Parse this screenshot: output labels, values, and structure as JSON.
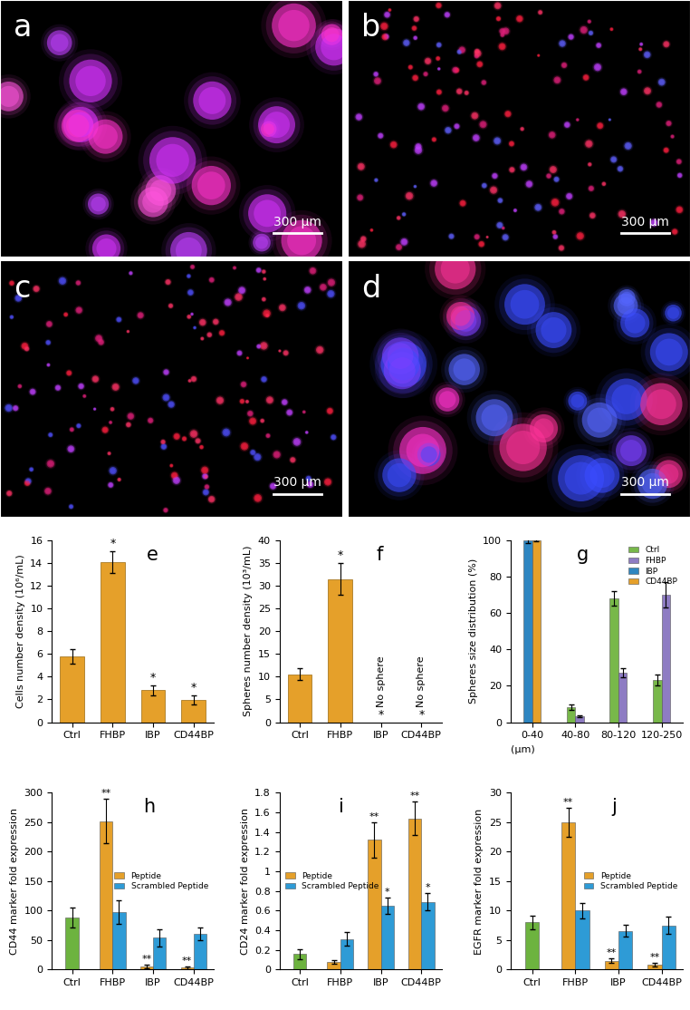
{
  "chart_data": [
    {
      "type": "image",
      "annotations": [
        "a",
        "300 μm"
      ]
    },
    {
      "type": "image",
      "annotations": [
        "b",
        "300 μm"
      ]
    },
    {
      "type": "image",
      "annotations": [
        "c",
        "300 μm"
      ]
    },
    {
      "type": "image",
      "annotations": [
        "d",
        "300 μm"
      ]
    },
    {
      "type": "bar",
      "annotations": [
        "e"
      ],
      "ylabel": "Cells number density (10⁶/mL)",
      "categories": [
        "Ctrl",
        "FHBP",
        "IBP",
        "CD44BP"
      ],
      "values": [
        5.8,
        14.1,
        2.8,
        1.95
      ],
      "errors": [
        0.65,
        0.95,
        0.45,
        0.4
      ],
      "significance": [
        null,
        "*",
        "*",
        "*"
      ],
      "color": "#E5A02A",
      "ylim": [
        0,
        16
      ],
      "yticks": [
        0,
        2,
        4,
        6,
        8,
        10,
        12,
        14,
        16
      ]
    },
    {
      "type": "bar",
      "annotations": [
        "f"
      ],
      "ylabel": "Spheres number density (10³/mL)",
      "categories": [
        "Ctrl",
        "FHBP",
        "IBP",
        "CD44BP"
      ],
      "values": [
        10.5,
        31.5,
        0,
        0
      ],
      "errors": [
        1.3,
        3.5,
        0,
        0
      ],
      "significance": [
        null,
        "*",
        "*",
        "*"
      ],
      "notes": [
        null,
        null,
        "No sphere",
        "No sphere"
      ],
      "color": "#E5A02A",
      "ylim": [
        0,
        40
      ],
      "yticks": [
        0,
        5,
        10,
        15,
        20,
        25,
        30,
        35,
        40
      ]
    },
    {
      "type": "grouped_bar",
      "annotations": [
        "g"
      ],
      "ylabel": "Spheres size distribution (%)",
      "xlabel": "(μm)",
      "categories": [
        "0-40",
        "40-80",
        "80-120",
        "120-250"
      ],
      "series": [
        {
          "name": "Ctrl",
          "color": "#78B84A",
          "values": [
            null,
            8,
            68,
            23
          ],
          "errors": [
            null,
            1.5,
            4,
            3
          ]
        },
        {
          "name": "FHBP",
          "color": "#8E7CC3",
          "values": [
            null,
            3,
            27,
            70
          ],
          "errors": [
            null,
            0.5,
            2.5,
            7
          ]
        },
        {
          "name": "IBP",
          "color": "#2E86C1",
          "values": [
            100,
            null,
            null,
            null
          ],
          "errors": [
            1.5,
            null,
            null,
            null
          ]
        },
        {
          "name": "CD44BP",
          "color": "#E5A02A",
          "values": [
            100,
            null,
            null,
            null
          ],
          "errors": [
            0.5,
            null,
            null,
            null
          ]
        }
      ],
      "legend": "upper right",
      "ylim": [
        0,
        100
      ],
      "yticks": [
        0,
        20,
        40,
        60,
        80,
        100
      ]
    },
    {
      "type": "grouped_bar",
      "annotations": [
        "h"
      ],
      "ylabel": "CD44 marker fold expression",
      "categories": [
        "Ctrl",
        "FHBP",
        "IBP",
        "CD44BP"
      ],
      "series": [
        {
          "color": "#6DB33F",
          "values": [
            88,
            null,
            null,
            null
          ],
          "errors": [
            17,
            null,
            null,
            null
          ]
        },
        {
          "name": "Peptide",
          "color": "#E5A02A",
          "values": [
            null,
            252,
            5,
            3
          ],
          "errors": [
            null,
            38,
            3,
            2
          ],
          "significance": [
            null,
            "**",
            "**",
            "**"
          ]
        },
        {
          "name": "Scrambled Peptide",
          "color": "#2E9BD6",
          "values": [
            null,
            98,
            54,
            61
          ],
          "errors": [
            null,
            20,
            15,
            11
          ]
        }
      ],
      "legend": "center right",
      "ylim": [
        0,
        300
      ],
      "yticks": [
        0,
        50,
        100,
        150,
        200,
        250,
        300
      ]
    },
    {
      "type": "grouped_bar",
      "annotations": [
        "i"
      ],
      "ylabel": "CD24 marker fold expression",
      "categories": [
        "Ctrl",
        "FHBP",
        "IBP",
        "CD44BP"
      ],
      "series": [
        {
          "color": "#6DB33F",
          "values": [
            0.16,
            null,
            null,
            null
          ],
          "errors": [
            0.05,
            null,
            null,
            null
          ]
        },
        {
          "name": "Peptide",
          "color": "#E5A02A",
          "values": [
            null,
            0.08,
            1.32,
            1.54
          ],
          "errors": [
            null,
            0.02,
            0.18,
            0.17
          ],
          "significance": [
            null,
            null,
            "**",
            "**"
          ]
        },
        {
          "name": "Scrambled Peptide",
          "color": "#2E9BD6",
          "values": [
            null,
            0.31,
            0.65,
            0.69
          ],
          "errors": [
            null,
            0.07,
            0.08,
            0.09
          ],
          "significance": [
            null,
            null,
            "*",
            "*"
          ]
        }
      ],
      "legend": "center left",
      "ylim": [
        0,
        1.8
      ],
      "yticks": [
        0,
        0.2,
        0.4,
        0.6,
        0.8,
        1,
        1.2,
        1.4,
        1.6,
        1.8
      ]
    },
    {
      "type": "grouped_bar",
      "annotations": [
        "j"
      ],
      "ylabel": "EGFR marker fold expression",
      "categories": [
        "Ctrl",
        "FHBP",
        "IBP",
        "CD44BP"
      ],
      "series": [
        {
          "color": "#6DB33F",
          "values": [
            8,
            null,
            null,
            null
          ],
          "errors": [
            1.2,
            null,
            null,
            null
          ]
        },
        {
          "name": "Peptide",
          "color": "#E5A02A",
          "values": [
            null,
            25,
            1.5,
            0.8
          ],
          "errors": [
            null,
            2.5,
            0.4,
            0.3
          ],
          "significance": [
            null,
            "**",
            "**",
            "**"
          ]
        },
        {
          "name": "Scrambled Peptide",
          "color": "#2E9BD6",
          "values": [
            null,
            10,
            6.6,
            7.5
          ],
          "errors": [
            null,
            1.3,
            1,
            1.5
          ]
        }
      ],
      "legend": "center right",
      "ylim": [
        0,
        30
      ],
      "yticks": [
        0,
        5,
        10,
        15,
        20,
        25,
        30
      ]
    }
  ]
}
